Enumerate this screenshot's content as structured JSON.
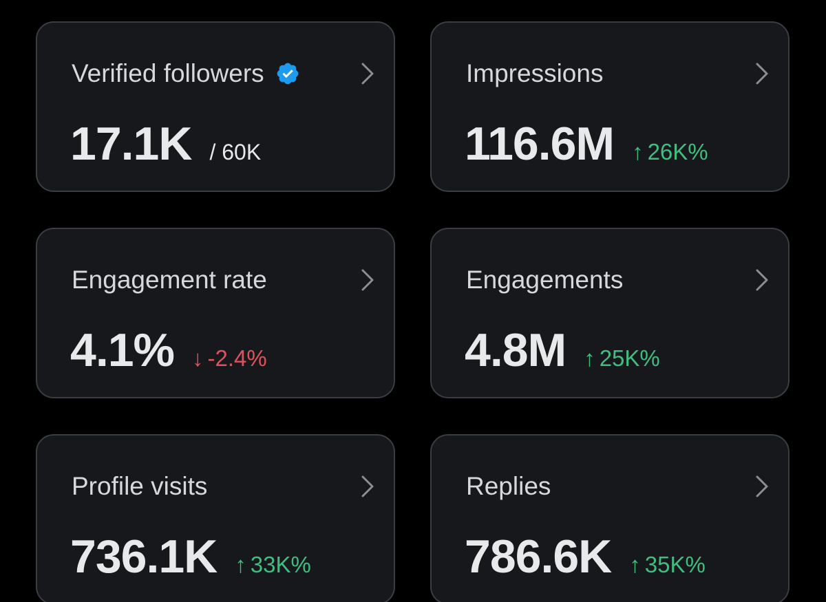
{
  "colors": {
    "background": "#000000",
    "card_background": "#16181c",
    "card_border": "#3a3d42",
    "positive": "#3fbf7f",
    "negative": "#e0515d",
    "verified": "#1d9bf0"
  },
  "cards": [
    {
      "title": "Verified followers",
      "value": "17.1K",
      "sub": "/ 60K",
      "icon": "verified-badge-icon"
    },
    {
      "title": "Impressions",
      "value": "116.6M",
      "change": "26K%",
      "direction": "up",
      "arrow": "↑"
    },
    {
      "title": "Engagement rate",
      "value": "4.1%",
      "change": "-2.4%",
      "direction": "down",
      "arrow": "↓"
    },
    {
      "title": "Engagements",
      "value": "4.8M",
      "change": "25K%",
      "direction": "up",
      "arrow": "↑"
    },
    {
      "title": "Profile visits",
      "value": "736.1K",
      "change": "33K%",
      "direction": "up",
      "arrow": "↑"
    },
    {
      "title": "Replies",
      "value": "786.6K",
      "change": "35K%",
      "direction": "up",
      "arrow": "↑"
    }
  ]
}
